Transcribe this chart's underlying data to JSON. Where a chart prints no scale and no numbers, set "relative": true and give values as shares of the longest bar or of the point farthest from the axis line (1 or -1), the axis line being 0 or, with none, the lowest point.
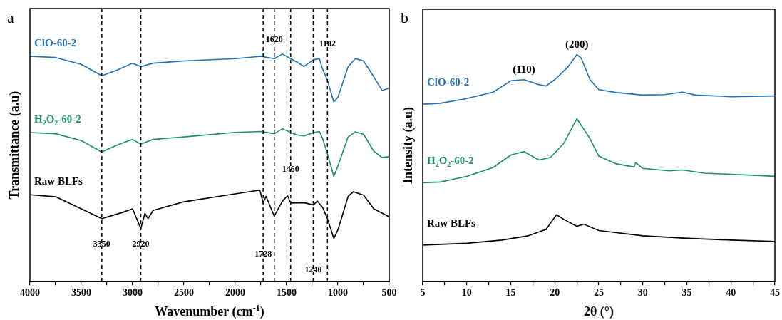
{
  "chart_data": [
    {
      "type": "line",
      "title": "a",
      "xlabel": "Wavenumber (cm$^{-1}$)",
      "ylabel": "Transmittance (a.u)",
      "relative": true,
      "xlim": [
        4000,
        500
      ],
      "xticks": [
        4000,
        {
          "value": 3750,
          "label": null
        },
        3500,
        {
          "value": 3250,
          "label": null
        },
        3000,
        {
          "value": 2750,
          "label": null
        },
        2500,
        {
          "value": 2250,
          "label": null
        },
        2000,
        {
          "value": 1750,
          "label": null
        },
        1500,
        {
          "value": 1250,
          "label": null
        },
        1000,
        {
          "value": 750,
          "label": null
        },
        500
      ],
      "tick_labels": "x",
      "grid": false,
      "legend": false,
      "marker": "none",
      "line_style": "solid",
      "series": [
        {
          "name": "ClO-60-2",
          "color": "#1f70b5",
          "x": [
            4000,
            3750,
            3500,
            3300,
            3150,
            3000,
            2920,
            2800,
            2500,
            2000,
            1750,
            1620,
            1540,
            1460,
            1400,
            1330,
            1240,
            1180,
            1150,
            1102,
            1040,
            1000,
            900,
            830,
            750,
            650,
            570,
            500
          ],
          "values": [
            0.99,
            0.985,
            0.955,
            0.905,
            0.93,
            0.96,
            0.945,
            0.96,
            0.97,
            0.98,
            0.99,
            0.98,
            1.0,
            0.98,
            0.965,
            0.945,
            0.975,
            0.98,
            0.935,
            0.885,
            0.79,
            0.81,
            0.945,
            0.98,
            0.97,
            0.9,
            0.84,
            0.85
          ]
        },
        {
          "name": "H$_{2}$O$_{2}$-60-2",
          "color": "#1a8f6e",
          "x": [
            4000,
            3750,
            3500,
            3300,
            3150,
            3000,
            2920,
            2800,
            2500,
            2000,
            1750,
            1620,
            1540,
            1460,
            1400,
            1330,
            1240,
            1180,
            1150,
            1102,
            1040,
            1000,
            900,
            830,
            750,
            650,
            570,
            500
          ],
          "values": [
            0.655,
            0.65,
            0.62,
            0.57,
            0.6,
            0.625,
            0.604,
            0.625,
            0.636,
            0.656,
            0.66,
            0.65,
            0.672,
            0.655,
            0.645,
            0.64,
            0.655,
            0.66,
            0.63,
            0.563,
            0.463,
            0.508,
            0.636,
            0.658,
            0.648,
            0.573,
            0.546,
            0.549
          ]
        },
        {
          "name": "Raw BLFs",
          "color": "#000000",
          "x": [
            4000,
            3750,
            3500,
            3300,
            3100,
            3000,
            2920,
            2880,
            2850,
            2800,
            2500,
            2000,
            1760,
            1728,
            1700,
            1620,
            1540,
            1490,
            1460,
            1330,
            1240,
            1200,
            1150,
            1102,
            1040,
            1000,
            900,
            850,
            750,
            650,
            500
          ],
          "values": [
            0.382,
            0.373,
            0.32,
            0.277,
            0.304,
            0.32,
            0.233,
            0.3,
            0.277,
            0.313,
            0.351,
            0.386,
            0.402,
            0.345,
            0.375,
            0.288,
            0.354,
            0.378,
            0.345,
            0.347,
            0.337,
            0.354,
            0.327,
            0.277,
            0.19,
            0.227,
            0.375,
            0.395,
            0.38,
            0.32,
            0.285
          ]
        }
      ],
      "ref_lines": [
        {
          "axis": "x",
          "value": 3300,
          "line_style": "dashed",
          "color": "#000000"
        },
        {
          "axis": "x",
          "value": 2920,
          "line_style": "dashed",
          "color": "#000000"
        },
        {
          "axis": "x",
          "value": 1728,
          "line_style": "dashed",
          "color": "#000000"
        },
        {
          "axis": "x",
          "value": 1620,
          "line_style": "dashed",
          "color": "#000000"
        },
        {
          "axis": "x",
          "value": 1460,
          "line_style": "dashed",
          "color": "#000000"
        },
        {
          "axis": "x",
          "value": 1240,
          "line_style": "dashed",
          "color": "#000000"
        },
        {
          "axis": "x",
          "value": 1102,
          "line_style": "dashed",
          "color": "#000000"
        }
      ],
      "annotations": [
        {
          "text": "3350",
          "x": 3300,
          "y": 0.123
        },
        {
          "text": "2920",
          "x": 2920,
          "y": 0.123
        },
        {
          "text": "1728",
          "x": 1728,
          "y": 0.079
        },
        {
          "text": "1620",
          "x": 1620,
          "y": 1.021
        },
        {
          "text": "1460",
          "x": 1460,
          "y": 0.453
        },
        {
          "text": "1240",
          "x": 1240,
          "y": 0.011
        },
        {
          "text": "1102",
          "x": 1102,
          "y": 1.003
        }
      ]
    },
    {
      "type": "line",
      "title": "b",
      "xlabel": "2θ (°)",
      "ylabel": "Intensity (a.u)",
      "relative": true,
      "xlim": [
        5,
        45
      ],
      "xticks": [
        5,
        {
          "value": 7.5,
          "label": null
        },
        10,
        {
          "value": 12.5,
          "label": null
        },
        15,
        {
          "value": 17.5,
          "label": null
        },
        20,
        {
          "value": 22.5,
          "label": null
        },
        25,
        {
          "value": 27.5,
          "label": null
        },
        30,
        {
          "value": 32.5,
          "label": null
        },
        35,
        {
          "value": 37.5,
          "label": null
        },
        40,
        {
          "value": 42.5,
          "label": null
        },
        45
      ],
      "tick_labels": "x",
      "grid": false,
      "legend": false,
      "marker": "none",
      "line_style": "solid",
      "series": [
        {
          "name": "ClO-60-2",
          "color": "#1f70b5",
          "x": [
            5,
            7,
            10,
            13,
            15,
            16.5,
            18,
            19,
            20,
            21.5,
            22.5,
            23,
            24,
            25,
            27,
            30,
            32.5,
            34.5,
            36,
            40,
            45
          ],
          "values": [
            0.782,
            0.786,
            0.807,
            0.835,
            0.885,
            0.89,
            0.87,
            0.862,
            0.89,
            0.946,
            1.0,
            0.985,
            0.89,
            0.846,
            0.833,
            0.822,
            0.824,
            0.835,
            0.822,
            0.815,
            0.818
          ]
        },
        {
          "name": "H$_{2}$O$_{2}$-60-2",
          "color": "#1a8f6e",
          "x": [
            5,
            7,
            10,
            13,
            15,
            16.5,
            18.2,
            19.5,
            21,
            22.5,
            24,
            25,
            27,
            29,
            29.2,
            30,
            33,
            34.5,
            37,
            40,
            45
          ],
          "values": [
            0.436,
            0.439,
            0.464,
            0.503,
            0.558,
            0.573,
            0.536,
            0.547,
            0.608,
            0.718,
            0.63,
            0.553,
            0.519,
            0.505,
            0.524,
            0.499,
            0.488,
            0.492,
            0.478,
            0.473,
            0.464
          ]
        },
        {
          "name": "Raw BLFs",
          "color": "#000000",
          "x": [
            5,
            10,
            14,
            17,
            19,
            20.2,
            21,
            22.5,
            23.3,
            25,
            30,
            35,
            40,
            45
          ],
          "values": [
            0.161,
            0.169,
            0.183,
            0.202,
            0.23,
            0.295,
            0.275,
            0.244,
            0.253,
            0.225,
            0.202,
            0.191,
            0.183,
            0.177
          ]
        }
      ],
      "annotations": [
        {
          "text": "(110)",
          "x": 16.5,
          "y": 0.89
        },
        {
          "text": "(200)",
          "x": 22.5,
          "y": 1.0
        }
      ]
    }
  ]
}
